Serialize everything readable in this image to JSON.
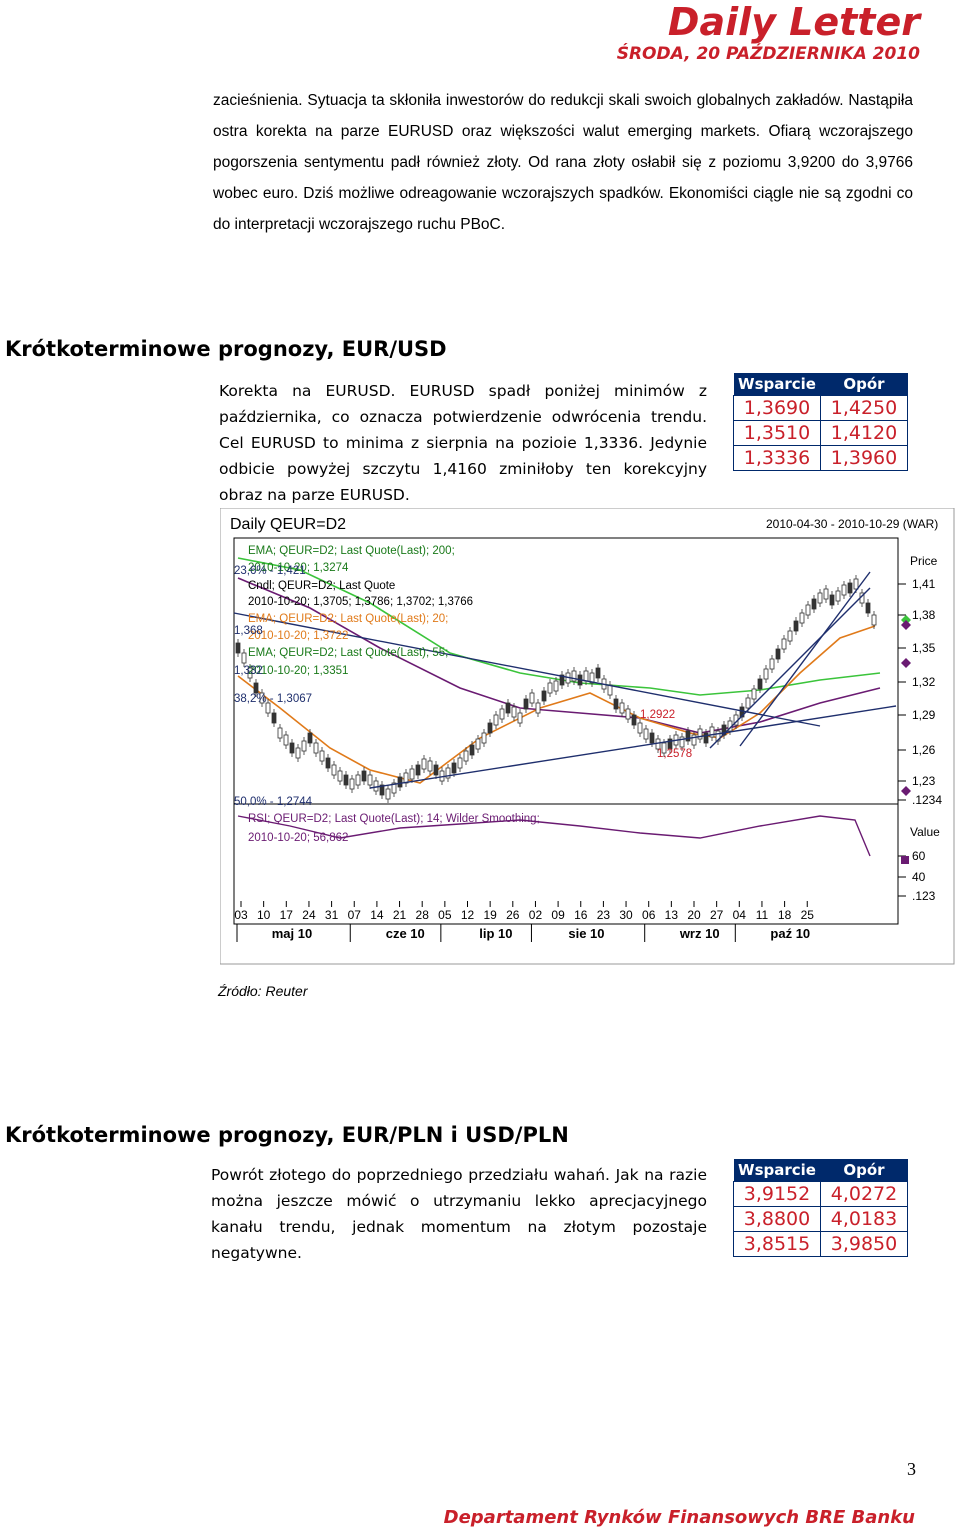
{
  "header": {
    "title": "Daily Letter",
    "date": "ŚRODA, 20 PAŹDZIERNIKA 2010"
  },
  "intro_paragraph": "zacieśnienia. Sytuacja ta skłoniła inwestorów do redukcji skali swoich globalnych zakładów. Nastąpiła ostra korekta na parze EURUSD oraz większości walut emerging markets. Ofiarą wczorajszego pogorszenia sentymentu padł również złoty. Od rana złoty osłabił się z poziomu 3,9200 do 3,9766 wobec euro. Dziś możliwe odreagowanie wczorajszych spadków. Ekonomiści ciągle nie są zgodni co do interpretacji wczorajszego ruchu PBoC.",
  "section_eurusd": {
    "heading": "Krótkoterminowe prognozy, EUR/USD",
    "text": "Korekta na EURUSD. EURUSD spadł poniżej minimów z października, co oznacza potwierdzenie odwrócenia trendu. Cel EURUSD to minima z sierpnia na pozioie 1,3336. Jedynie odbicie powyżej szczytu 1,4160 zminiłoby ten korekcyjny obraz na parze EURUSD.",
    "table": {
      "headers": [
        "Wsparcie",
        "Opór"
      ],
      "rows": [
        [
          "1,3690",
          "1,4250"
        ],
        [
          "1,3510",
          "1,4120"
        ],
        [
          "1,3336",
          "1,3960"
        ]
      ]
    }
  },
  "chart_data": {
    "type": "line",
    "title": "Daily QEUR=D2",
    "date_range": "2010-04-30 - 2010-10-29 (WAR)",
    "price_axis_label": "Price",
    "value_axis_label": "Value",
    "price_ticks": [
      "1,41",
      "1,38",
      "1,35",
      "1,32",
      "1,29",
      "1,26",
      "1,23",
      ".1234"
    ],
    "value_ticks": [
      "60",
      "40",
      ".123"
    ],
    "x_day_ticks": [
      "03",
      "10",
      "17",
      "24",
      "31",
      "07",
      "14",
      "21",
      "28",
      "05",
      "12",
      "19",
      "26",
      "02",
      "09",
      "16",
      "23",
      "30",
      "06",
      "13",
      "20",
      "27",
      "04",
      "11",
      "18",
      "25"
    ],
    "x_month_labels": [
      "maj 10",
      "cze 10",
      "lip 10",
      "sie 10",
      "wrz 10",
      "paź 10"
    ],
    "legend": [
      "EMA; QEUR=D2; Last Quote(Last); 200;",
      "2010-10-20; 1,3274",
      "Cndl; QEUR=D2; Last Quote",
      "2010-10-20; 1,3705; 1,3786; 1,3702; 1,3766",
      "EMA; QEUR=D2; Last Quote(Last); 20;",
      "2010-10-20; 1,3722",
      "EMA; QEUR=D2; Last Quote(Last); 55;",
      "2010-10-20; 1,3351",
      "RSI; QEUR=D2; Last Quote(Last); 14; Wilder Smoothing;",
      "2010-10-20; 56,862"
    ],
    "overlay_labels": [
      "23,6% - 1,421",
      "1,368",
      "1,332",
      "38,2% - 1,3067",
      "1,2922",
      "1,2578",
      "50,0% - 1,2744"
    ],
    "series": [
      {
        "name": "Cndl; QEUR=D2; Last Quote",
        "color": "#555555"
      },
      {
        "name": "EMA 20",
        "color": "#e07a1a"
      },
      {
        "name": "EMA 55",
        "color": "#3bc43b"
      },
      {
        "name": "EMA 200",
        "color": "#6a1b72"
      },
      {
        "name": "RSI 14",
        "color": "#6a1b72"
      }
    ]
  },
  "source": "Źródło: Reuter",
  "section_eurpln": {
    "heading": "Krótkoterminowe prognozy, EUR/PLN i USD/PLN",
    "text": "Powrót złotego do poprzedniego przedziału wahań. Jak na razie można jeszcze mówić o utrzymaniu lekko aprecjacyjnego kanału trendu, jednak momentum na złotym pozostaje negatywne.",
    "table": {
      "headers": [
        "Wsparcie",
        "Opór"
      ],
      "rows": [
        [
          "3,9152",
          "4,0272"
        ],
        [
          "3,8800",
          "4,0183"
        ],
        [
          "3,8515",
          "3,9850"
        ]
      ]
    }
  },
  "page_number": "3",
  "footer": "Departament Rynków Finansowych BRE Banku",
  "colors": {
    "brand_red": "#c9202a",
    "table_header_bg": "#00296b"
  }
}
